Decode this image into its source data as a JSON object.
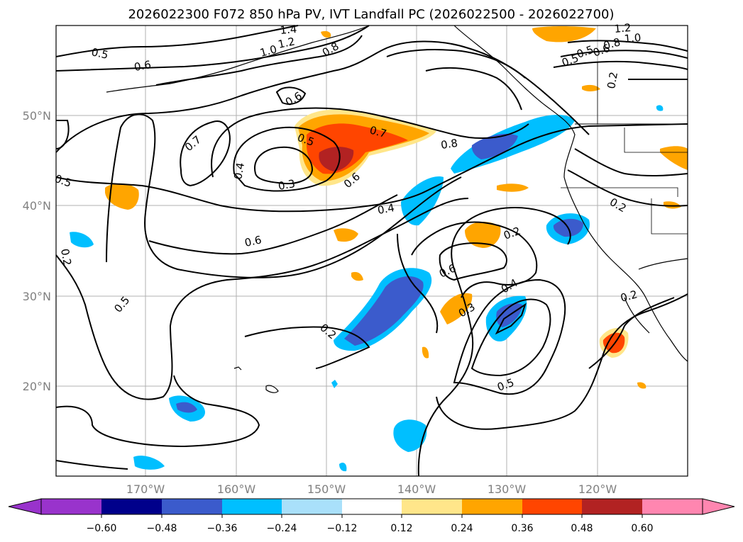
{
  "title": "2026022300 F072 850 hPa PV, IVT Landfall PC (2026022500 - 2026022700)",
  "map": {
    "lat_labels": [
      "50°N",
      "40°N",
      "30°N",
      "20°N"
    ],
    "lon_labels": [
      "170°W",
      "160°W",
      "150°W",
      "140°W",
      "130°W",
      "120°W"
    ],
    "contour_labels": [
      "0.5",
      "0.6",
      "0.8",
      "1.0",
      "1.2",
      "1.4",
      "0.6",
      "0.7",
      "0.5",
      "0.3",
      "0.4",
      "0.7",
      "0.6",
      "0.8",
      "0.4",
      "0.6",
      "0.5",
      "0.6",
      "0.4",
      "0.3",
      "0.2",
      "0.5",
      "0.5",
      "0.2",
      "0.2",
      "0.2",
      "0.8",
      "0.6",
      "0.5",
      "0.5",
      "1.0",
      "1.2",
      "0.2",
      "0.2"
    ],
    "colors": {
      "neg_extend": "#9933cc",
      "neg_060": "#00008b",
      "neg_048": "#3b5bcc",
      "neg_036": "#00bfff",
      "neg_024": "#a9e0fa",
      "neutral": "#ffffff",
      "pos_012": "#ffe68a",
      "pos_024": "#ffa500",
      "pos_036": "#ff4500",
      "pos_048": "#b22222",
      "pos_extend": "#ff86b0"
    }
  },
  "colorbar": {
    "ticks": [
      "−0.60",
      "−0.48",
      "−0.36",
      "−0.24",
      "−0.12",
      "0.12",
      "0.24",
      "0.36",
      "0.48",
      "0.60"
    ]
  }
}
